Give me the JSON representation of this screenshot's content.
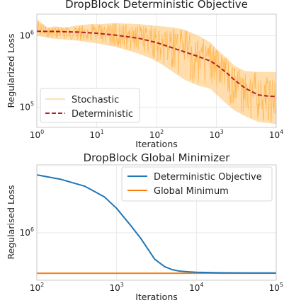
{
  "chart_data": [
    {
      "type": "line",
      "title": "DropBlock Deterministic Objective",
      "xlabel": "Iterations",
      "ylabel": "Regularized Loss",
      "xscale": "log",
      "yscale": "log",
      "xlim": [
        1,
        10000
      ],
      "ylim": [
        52000,
        2000000
      ],
      "xticks": [
        {
          "base": "10",
          "exp": "0"
        },
        {
          "base": "10",
          "exp": "1"
        },
        {
          "base": "10",
          "exp": "2"
        },
        {
          "base": "10",
          "exp": "3"
        },
        {
          "base": "10",
          "exp": "4"
        }
      ],
      "yticks": [
        {
          "base": "10",
          "exp": "6"
        },
        {
          "base": "10",
          "exp": "5"
        }
      ],
      "grid": true,
      "legend": "lower-left",
      "series": [
        {
          "name": "Stochastic",
          "color": "#ffb347",
          "x": [
            1,
            1.5,
            2,
            3,
            5,
            8,
            12,
            20,
            30,
            50,
            80,
            120,
            200,
            300,
            500,
            800,
            1000,
            1500,
            2000,
            3000,
            5000,
            7000,
            10000
          ],
          "values": [
            1150000,
            1100000,
            1120000,
            1100000,
            1100000,
            1080000,
            1060000,
            1030000,
            990000,
            940000,
            880000,
            800000,
            700000,
            620000,
            520000,
            430000,
            380000,
            300000,
            240000,
            190000,
            150000,
            145000,
            140000
          ],
          "band_low": [
            1000000,
            940000,
            900000,
            880000,
            850000,
            800000,
            760000,
            700000,
            640000,
            560000,
            480000,
            400000,
            300000,
            240000,
            200000,
            180000,
            150000,
            110000,
            90000,
            75000,
            62000,
            60000,
            58000
          ],
          "band_high": [
            1700000,
            1300000,
            1350000,
            1300000,
            1400000,
            1450000,
            1450000,
            1500000,
            1480000,
            1450000,
            1400000,
            1350000,
            1300000,
            1200000,
            1000000,
            800000,
            650000,
            480000,
            380000,
            320000,
            310000,
            310000,
            310000
          ]
        },
        {
          "name": "Deterministic",
          "color": "#b22222",
          "x": [
            1,
            2,
            5,
            10,
            20,
            50,
            100,
            200,
            300,
            500,
            800,
            1000,
            1500,
            2000,
            3000,
            5000,
            7000,
            10000
          ],
          "values": [
            1150000,
            1145000,
            1120000,
            1080000,
            1020000,
            920000,
            800000,
            660000,
            590000,
            510000,
            440000,
            390000,
            300000,
            240000,
            185000,
            148000,
            143000,
            140000
          ]
        }
      ]
    },
    {
      "type": "line",
      "title": "DropBlock Global Minimizer",
      "xlabel": "Iterations",
      "ylabel": "Regularised Loss",
      "xscale": "log",
      "yscale": "log",
      "xlim": [
        100,
        100000
      ],
      "ylim": [
        400000,
        3700000
      ],
      "xticks": [
        {
          "base": "10",
          "exp": "2"
        },
        {
          "base": "10",
          "exp": "3"
        },
        {
          "base": "10",
          "exp": "4"
        },
        {
          "base": "10",
          "exp": "5"
        }
      ],
      "yticks": [
        {
          "base": "10",
          "exp": "6"
        }
      ],
      "grid": true,
      "legend": "upper-right",
      "series": [
        {
          "name": "Deterministic Objective",
          "color": "#1f77b4",
          "x": [
            100,
            200,
            400,
            700,
            1000,
            1500,
            2000,
            2500,
            3000,
            4000,
            5000,
            6000,
            8000,
            10000,
            20000,
            30000,
            50000,
            100000
          ],
          "values": [
            3050000,
            2800000,
            2450000,
            2000000,
            1600000,
            1150000,
            900000,
            720000,
            600000,
            520000,
            490000,
            478000,
            470000,
            466000,
            462000,
            461000,
            460000,
            460000
          ]
        },
        {
          "name": "Global Minimum",
          "color": "#ff7f0e",
          "x": [
            100,
            100000
          ],
          "values": [
            458000,
            458000
          ]
        }
      ]
    }
  ]
}
